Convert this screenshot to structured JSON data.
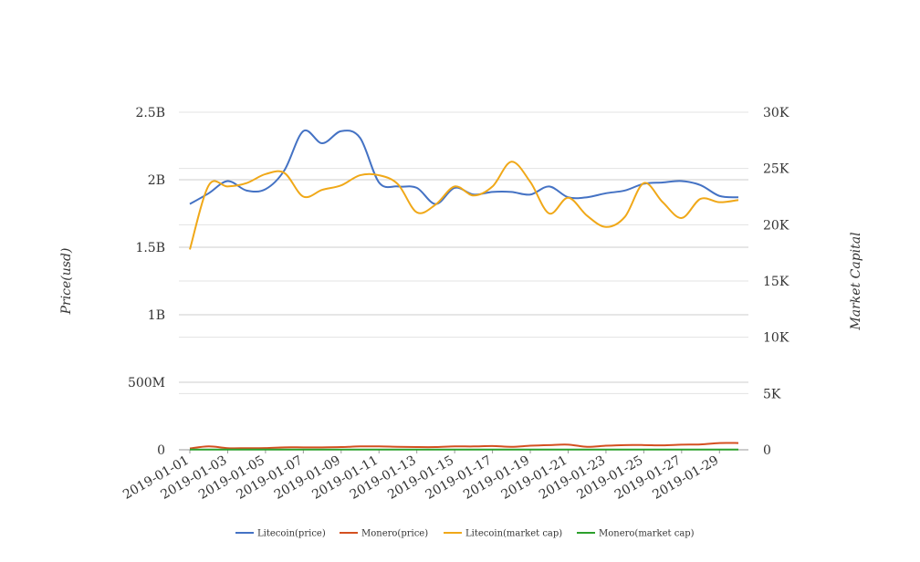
{
  "chart_data": {
    "type": "line",
    "title": "",
    "ylabel_left": "Price(usd)",
    "ylabel_right": "Market Capital",
    "y_left": {
      "ticks": [
        "0",
        "500M",
        "1B",
        "1.5B",
        "2B",
        "2.5B"
      ],
      "range": [
        0,
        2.5
      ]
    },
    "y_right": {
      "ticks": [
        "0",
        "5K",
        "10K",
        "15K",
        "20K",
        "25K",
        "30K"
      ],
      "range": [
        0,
        30
      ]
    },
    "grid": true,
    "legend_position": "bottom",
    "x": [
      "2019-01-01",
      "2019-01-02",
      "2019-01-03",
      "2019-01-04",
      "2019-01-05",
      "2019-01-06",
      "2019-01-07",
      "2019-01-08",
      "2019-01-09",
      "2019-01-10",
      "2019-01-11",
      "2019-01-12",
      "2019-01-13",
      "2019-01-14",
      "2019-01-15",
      "2019-01-16",
      "2019-01-17",
      "2019-01-18",
      "2019-01-19",
      "2019-01-20",
      "2019-01-21",
      "2019-01-22",
      "2019-01-23",
      "2019-01-24",
      "2019-01-25",
      "2019-01-26",
      "2019-01-27",
      "2019-01-28",
      "2019-01-29",
      "2019-01-30"
    ],
    "xticks": [
      "2019-01-01",
      "2019-01-03",
      "2019-01-05",
      "2019-01-07",
      "2019-01-09",
      "2019-01-11",
      "2019-01-13",
      "2019-01-15",
      "2019-01-17",
      "2019-01-19",
      "2019-01-21",
      "2019-01-23",
      "2019-01-25",
      "2019-01-27",
      "2019-01-29"
    ],
    "series": [
      {
        "name": "Litecoin(price)",
        "color": "#4472c4",
        "axis": "left",
        "values": [
          1.82,
          1.9,
          1.99,
          1.92,
          1.93,
          2.07,
          2.36,
          2.27,
          2.36,
          2.31,
          1.98,
          1.95,
          1.94,
          1.82,
          1.94,
          1.89,
          1.91,
          1.91,
          1.89,
          1.95,
          1.87,
          1.87,
          1.9,
          1.92,
          1.97,
          1.98,
          1.99,
          1.96,
          1.88,
          1.87
        ]
      },
      {
        "name": "Monero(price)",
        "color": "#d45020",
        "axis": "left",
        "values": [
          0.01,
          0.025,
          0.012,
          0.012,
          0.013,
          0.018,
          0.018,
          0.018,
          0.02,
          0.025,
          0.025,
          0.022,
          0.02,
          0.02,
          0.025,
          0.025,
          0.028,
          0.022,
          0.03,
          0.035,
          0.038,
          0.022,
          0.03,
          0.035,
          0.035,
          0.033,
          0.038,
          0.04,
          0.05,
          0.05
        ]
      },
      {
        "name": "Litecoin(market cap)",
        "color": "#f0a818",
        "axis": "right",
        "values": [
          17.8,
          23.5,
          23.4,
          23.7,
          24.5,
          24.6,
          22.5,
          23.1,
          23.5,
          24.4,
          24.4,
          23.6,
          21.1,
          21.8,
          23.4,
          22.6,
          23.4,
          25.6,
          23.8,
          21.0,
          22.4,
          20.8,
          19.8,
          20.7,
          23.7,
          22.0,
          20.6,
          22.3,
          22.0,
          22.2
        ]
      },
      {
        "name": "Monero(market cap)",
        "color": "#2ca02c",
        "axis": "right",
        "values": [
          0.02,
          0.02,
          0.02,
          0.02,
          0.02,
          0.02,
          0.02,
          0.02,
          0.02,
          0.02,
          0.02,
          0.02,
          0.02,
          0.02,
          0.02,
          0.02,
          0.02,
          0.02,
          0.02,
          0.02,
          0.02,
          0.02,
          0.02,
          0.02,
          0.02,
          0.02,
          0.02,
          0.02,
          0.02,
          0.02
        ]
      }
    ]
  }
}
